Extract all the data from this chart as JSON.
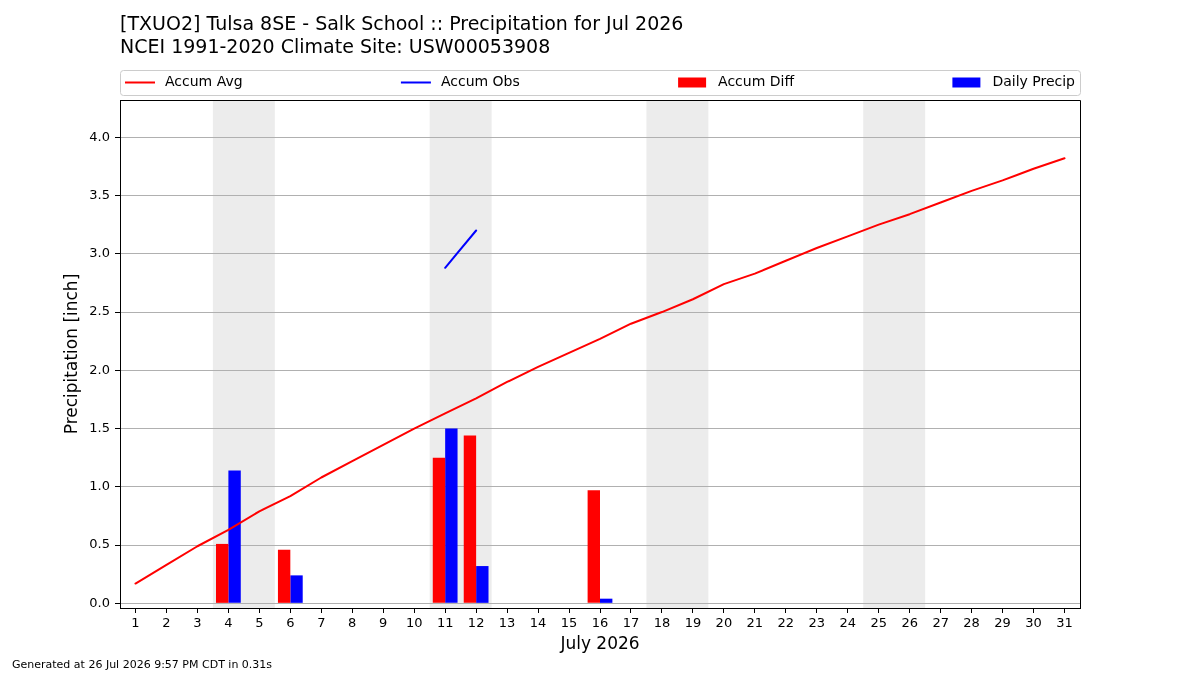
{
  "chart_data": {
    "type": "bar",
    "title": "[TXUO2] Tulsa 8SE - Salk School :: Precipitation for Jul 2026",
    "subtitle": "NCEI 1991-2020 Climate Site: USW00053908",
    "xlabel": "July 2026",
    "ylabel": "Precipitation [inch]",
    "x": [
      1,
      2,
      3,
      4,
      5,
      6,
      7,
      8,
      9,
      10,
      11,
      12,
      13,
      14,
      15,
      16,
      17,
      18,
      19,
      20,
      21,
      22,
      23,
      24,
      25,
      26,
      27,
      28,
      29,
      30,
      31
    ],
    "series": [
      {
        "name": "Accum Avg",
        "type": "line",
        "color": "#ff0000",
        "values": [
          0.17,
          0.33,
          0.49,
          0.63,
          0.79,
          0.92,
          1.08,
          1.22,
          1.36,
          1.5,
          1.63,
          1.76,
          1.9,
          2.03,
          2.15,
          2.27,
          2.4,
          2.5,
          2.61,
          2.74,
          2.83,
          2.94,
          3.05,
          3.15,
          3.25,
          3.34,
          3.44,
          3.54,
          3.63,
          3.73,
          3.82
        ]
      },
      {
        "name": "Accum Obs",
        "type": "line",
        "color": "#0000ff",
        "values": [
          null,
          null,
          null,
          null,
          null,
          null,
          null,
          null,
          null,
          null,
          2.88,
          3.2,
          null,
          null,
          null,
          null,
          null,
          null,
          null,
          null,
          null,
          null,
          null,
          null,
          null,
          null,
          null,
          null,
          null,
          null,
          null
        ]
      },
      {
        "name": "Accum Diff",
        "color": "#ff0000",
        "values": [
          null,
          null,
          null,
          0.51,
          null,
          0.46,
          null,
          null,
          null,
          null,
          1.25,
          1.44,
          null,
          null,
          null,
          0.97,
          null,
          null,
          null,
          null,
          null,
          null,
          null,
          null,
          null,
          null,
          null,
          null,
          null,
          null,
          null
        ]
      },
      {
        "name": "Daily Precip",
        "color": "#0000ff",
        "values": [
          null,
          null,
          null,
          1.14,
          null,
          0.24,
          null,
          null,
          null,
          null,
          1.5,
          0.32,
          null,
          null,
          null,
          0.04,
          null,
          null,
          null,
          null,
          null,
          null,
          null,
          null,
          null,
          null,
          null,
          null,
          null,
          null,
          null
        ]
      }
    ],
    "xlim": [
      0.5,
      31.5
    ],
    "xticks": [
      1,
      2,
      3,
      4,
      5,
      6,
      7,
      8,
      9,
      10,
      11,
      12,
      13,
      14,
      15,
      16,
      17,
      18,
      19,
      20,
      21,
      22,
      23,
      24,
      25,
      26,
      27,
      28,
      29,
      30,
      31
    ],
    "ylim": [
      -0.04,
      4.32
    ],
    "yticks": [
      {
        "value": 0,
        "label": "0.0"
      },
      {
        "value": 0.5,
        "label": "0.5"
      },
      {
        "value": 1,
        "label": "1.0"
      },
      {
        "value": 1.5,
        "label": "1.5"
      },
      {
        "value": 2,
        "label": "2.0"
      },
      {
        "value": 2.5,
        "label": "2.5"
      },
      {
        "value": 3,
        "label": "3.0"
      },
      {
        "value": 3.5,
        "label": "3.5"
      },
      {
        "value": 4,
        "label": "4.0"
      }
    ],
    "bands": [
      {
        "axis": "x",
        "from": 3.5,
        "to": 5.5,
        "color": "#ececec"
      },
      {
        "axis": "x",
        "from": 10.5,
        "to": 12.5,
        "color": "#ececec"
      },
      {
        "axis": "x",
        "from": 17.5,
        "to": 19.5,
        "color": "#ececec"
      },
      {
        "axis": "x",
        "from": 24.5,
        "to": 26.5,
        "color": "#ececec"
      }
    ],
    "grid": "y",
    "legend": "top",
    "marker": "none",
    "line_style": "solid",
    "annotations": [
      "Generated at 26 Jul 2026 9:57 PM CDT in 0.31s"
    ]
  }
}
